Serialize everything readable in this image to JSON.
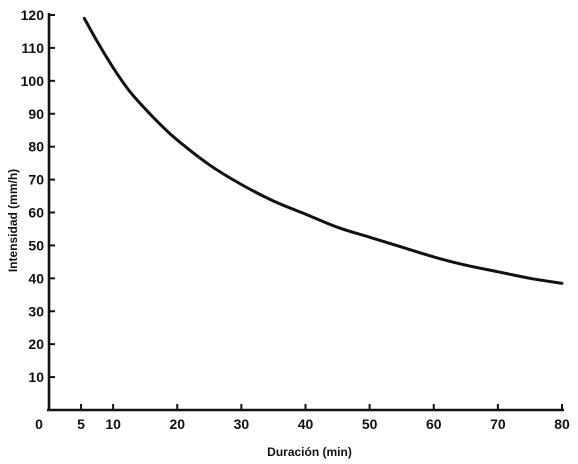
{
  "chart_data": {
    "type": "line",
    "title": "",
    "xlabel": "Duración (min)",
    "ylabel": "Intensidad (mm/h)",
    "xlim": [
      0,
      80
    ],
    "ylim": [
      0,
      120
    ],
    "x_ticks": [
      0,
      5,
      10,
      20,
      30,
      40,
      50,
      60,
      70,
      80
    ],
    "y_ticks": [
      10,
      20,
      30,
      40,
      50,
      60,
      70,
      80,
      90,
      100,
      110,
      120
    ],
    "grid": false,
    "legend": "none",
    "series": [
      {
        "x": [
          5.5,
          7.5,
          10,
          12.5,
          15,
          17.5,
          20,
          25,
          30,
          35,
          40,
          45,
          50,
          55,
          60,
          65,
          70,
          75,
          80
        ],
        "y": [
          119,
          112,
          104,
          97,
          91.5,
          86.5,
          82,
          74.5,
          68.5,
          63.5,
          59.5,
          55.5,
          52.5,
          49.5,
          46.5,
          44,
          42,
          40,
          38.5
        ]
      }
    ]
  }
}
